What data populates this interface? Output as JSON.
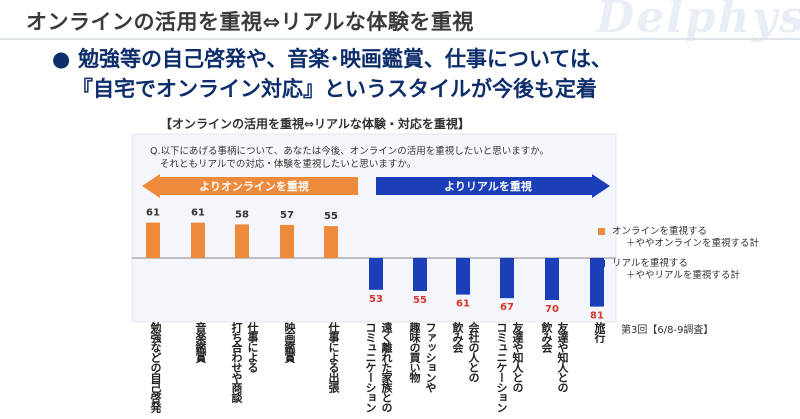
{
  "header": {
    "title": "オンラインの活用を重視⇔リアルな体験を重視",
    "logo_text": "Delphys"
  },
  "headline": {
    "line1": "勉強等の自己啓発や、音楽･映画鑑賞、仕事については、",
    "line2": "『自宅でオンライン対応』というスタイルが今後も定着"
  },
  "chart_data": {
    "type": "bar",
    "title": "【オンラインの活用を重視⇔リアルな体験・対応を重視】",
    "question": [
      "Q.以下にあげる事柄について、あなたは今後、オンラインの活用を重視したいと思いますか。",
      "それともリアルでの対応・体験を重視したいと思いますか。"
    ],
    "arrows": {
      "online": "よりオンラインを重視",
      "real": "よりリアルを重視"
    },
    "categories": [
      "勉強などの自己啓発",
      "音楽鑑賞",
      "仕事による打ち合わせや商談",
      "映画鑑賞",
      "仕事による出張",
      "遠く離れた家族とのコミュニケーション",
      "趣味の買い物",
      "会社の人との飲み会",
      "友達や知人とのコミュニケーション",
      "友達や知人との飲み会",
      "旅行"
    ],
    "category_lines": [
      [
        "勉強などの自己啓発"
      ],
      [
        "音楽鑑賞"
      ],
      [
        "打ち合わせや商談",
        "仕事による"
      ],
      [
        "映画鑑賞"
      ],
      [
        "仕事による出張"
      ],
      [
        "コミュニケーション",
        "遠く離れた家族との"
      ],
      [
        "趣味の買い物",
        "ファッションや"
      ],
      [
        "飲み会",
        "会社の人との"
      ],
      [
        "コミュニケーション",
        "友達や知人との"
      ],
      [
        "飲み会",
        "友達や知人との"
      ],
      [
        "旅行"
      ]
    ],
    "series": [
      {
        "name": "オンラインを重視する＋ややオンラインを重視する計",
        "color": "#ee8a3c",
        "values": [
          61,
          61,
          58,
          57,
          55,
          null,
          null,
          null,
          null,
          null,
          null
        ]
      },
      {
        "name": "リアルを重視する＋ややリアルを重視する計",
        "color": "#1a3fb8",
        "values": [
          null,
          null,
          null,
          null,
          null,
          53,
          55,
          61,
          67,
          70,
          81
        ]
      }
    ],
    "legend": [
      {
        "line1": "オンラインを重視する",
        "line2": "＋ややオンラインを重視する計",
        "color": "#ee8a3c"
      },
      {
        "line1": "リアルを重視する",
        "line2": "＋ややリアルを重視する計",
        "color": "#1a3fb8"
      }
    ],
    "legend_position": "right",
    "survey_note": "第3回【6/8-9調査】",
    "value_label_colors": {
      "online": "#333333",
      "real": "#d9352b"
    },
    "grid": false
  }
}
